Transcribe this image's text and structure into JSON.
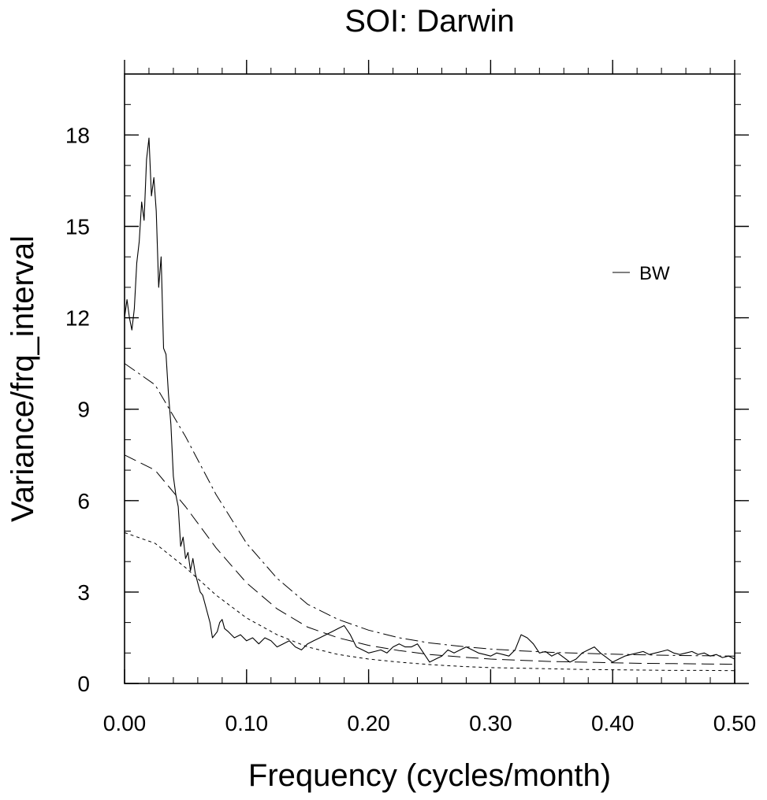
{
  "chart_data": {
    "type": "line",
    "title": "SOI: Darwin",
    "xlabel": "Frequency (cycles/month)",
    "ylabel": "Variance/frq_interval",
    "xlim": [
      0,
      0.5
    ],
    "ylim": [
      0,
      20
    ],
    "x_ticks": [
      0,
      0.1,
      0.2,
      0.3,
      0.4,
      0.5
    ],
    "x_tick_labels": [
      "0.00",
      "0.10",
      "0.20",
      "0.30",
      "0.40",
      "0.50"
    ],
    "y_ticks": [
      0,
      3,
      6,
      9,
      12,
      15,
      18
    ],
    "y_tick_labels": [
      "0",
      "3",
      "6",
      "9",
      "12",
      "15",
      "18"
    ],
    "grid": false,
    "legend": {
      "position": "upper-right",
      "entries": [
        "BW"
      ]
    },
    "series": [
      {
        "name": "BW",
        "style": "solid",
        "x": [
          0.0,
          0.002,
          0.004,
          0.006,
          0.008,
          0.01,
          0.012,
          0.014,
          0.016,
          0.018,
          0.02,
          0.022,
          0.024,
          0.026,
          0.028,
          0.03,
          0.032,
          0.034,
          0.036,
          0.038,
          0.04,
          0.042,
          0.044,
          0.046,
          0.048,
          0.05,
          0.052,
          0.054,
          0.056,
          0.058,
          0.06,
          0.062,
          0.064,
          0.066,
          0.068,
          0.07,
          0.072,
          0.074,
          0.076,
          0.078,
          0.08,
          0.082,
          0.085,
          0.09,
          0.095,
          0.1,
          0.105,
          0.11,
          0.115,
          0.12,
          0.125,
          0.13,
          0.135,
          0.14,
          0.145,
          0.15,
          0.155,
          0.16,
          0.165,
          0.17,
          0.175,
          0.18,
          0.185,
          0.19,
          0.195,
          0.2,
          0.205,
          0.21,
          0.215,
          0.22,
          0.225,
          0.23,
          0.235,
          0.24,
          0.245,
          0.25,
          0.255,
          0.26,
          0.265,
          0.27,
          0.275,
          0.28,
          0.285,
          0.29,
          0.295,
          0.3,
          0.305,
          0.31,
          0.315,
          0.32,
          0.325,
          0.33,
          0.335,
          0.34,
          0.345,
          0.35,
          0.355,
          0.36,
          0.365,
          0.37,
          0.375,
          0.38,
          0.385,
          0.39,
          0.395,
          0.4,
          0.405,
          0.41,
          0.415,
          0.42,
          0.425,
          0.43,
          0.435,
          0.44,
          0.445,
          0.45,
          0.455,
          0.46,
          0.465,
          0.47,
          0.475,
          0.48,
          0.485,
          0.49,
          0.495,
          0.5
        ],
        "y": [
          12.0,
          12.6,
          12.0,
          11.6,
          12.3,
          13.8,
          14.5,
          15.8,
          15.2,
          17.2,
          17.9,
          16.0,
          16.6,
          15.5,
          13.0,
          14.0,
          11.0,
          10.8,
          9.5,
          8.5,
          6.8,
          6.2,
          5.8,
          4.5,
          4.8,
          4.1,
          4.3,
          3.7,
          4.1,
          3.6,
          3.3,
          3.0,
          2.9,
          2.6,
          2.3,
          2.0,
          1.5,
          1.6,
          1.7,
          2.0,
          2.1,
          1.8,
          1.7,
          1.5,
          1.6,
          1.4,
          1.5,
          1.3,
          1.5,
          1.4,
          1.2,
          1.3,
          1.4,
          1.2,
          1.1,
          1.3,
          1.4,
          1.5,
          1.6,
          1.7,
          1.8,
          1.9,
          1.6,
          1.2,
          1.1,
          1.0,
          1.05,
          1.1,
          1.0,
          1.2,
          1.3,
          1.2,
          1.2,
          1.3,
          1.0,
          0.7,
          0.8,
          0.9,
          1.1,
          1.0,
          1.1,
          1.2,
          1.1,
          1.0,
          0.95,
          0.9,
          1.0,
          0.95,
          0.9,
          1.1,
          1.6,
          1.5,
          1.3,
          1.0,
          1.05,
          0.9,
          1.0,
          0.85,
          0.7,
          0.8,
          1.0,
          1.1,
          1.2,
          1.0,
          0.85,
          0.7,
          0.8,
          0.9,
          0.95,
          1.0,
          1.05,
          0.95,
          1.0,
          1.05,
          1.1,
          1.0,
          0.95,
          1.0,
          1.05,
          0.95,
          1.0,
          0.9,
          0.95,
          0.85,
          0.9,
          0.8
        ]
      },
      {
        "style": "dotted",
        "x": [
          0.0,
          0.025,
          0.05,
          0.075,
          0.1,
          0.125,
          0.15,
          0.175,
          0.2,
          0.225,
          0.25,
          0.275,
          0.3,
          0.325,
          0.35,
          0.375,
          0.4,
          0.425,
          0.45,
          0.475,
          0.5
        ],
        "y": [
          4.95,
          4.6,
          3.8,
          2.9,
          2.15,
          1.6,
          1.2,
          0.95,
          0.8,
          0.7,
          0.62,
          0.56,
          0.52,
          0.5,
          0.48,
          0.46,
          0.45,
          0.44,
          0.43,
          0.43,
          0.42
        ]
      },
      {
        "style": "dashed",
        "x": [
          0.0,
          0.025,
          0.05,
          0.075,
          0.1,
          0.125,
          0.15,
          0.175,
          0.2,
          0.225,
          0.25,
          0.275,
          0.3,
          0.325,
          0.35,
          0.375,
          0.4,
          0.425,
          0.45,
          0.475,
          0.5
        ],
        "y": [
          7.5,
          7.0,
          5.8,
          4.45,
          3.3,
          2.45,
          1.85,
          1.5,
          1.25,
          1.08,
          0.95,
          0.87,
          0.8,
          0.76,
          0.72,
          0.7,
          0.68,
          0.66,
          0.65,
          0.64,
          0.63
        ]
      },
      {
        "style": "dash-dot",
        "x": [
          0.0,
          0.025,
          0.05,
          0.075,
          0.1,
          0.125,
          0.15,
          0.175,
          0.2,
          0.225,
          0.25,
          0.275,
          0.3,
          0.325,
          0.35,
          0.375,
          0.4,
          0.425,
          0.45,
          0.475,
          0.5
        ],
        "y": [
          10.5,
          9.8,
          8.1,
          6.2,
          4.6,
          3.45,
          2.6,
          2.1,
          1.75,
          1.5,
          1.33,
          1.22,
          1.13,
          1.07,
          1.02,
          0.99,
          0.96,
          0.94,
          0.92,
          0.91,
          0.9
        ]
      }
    ]
  }
}
